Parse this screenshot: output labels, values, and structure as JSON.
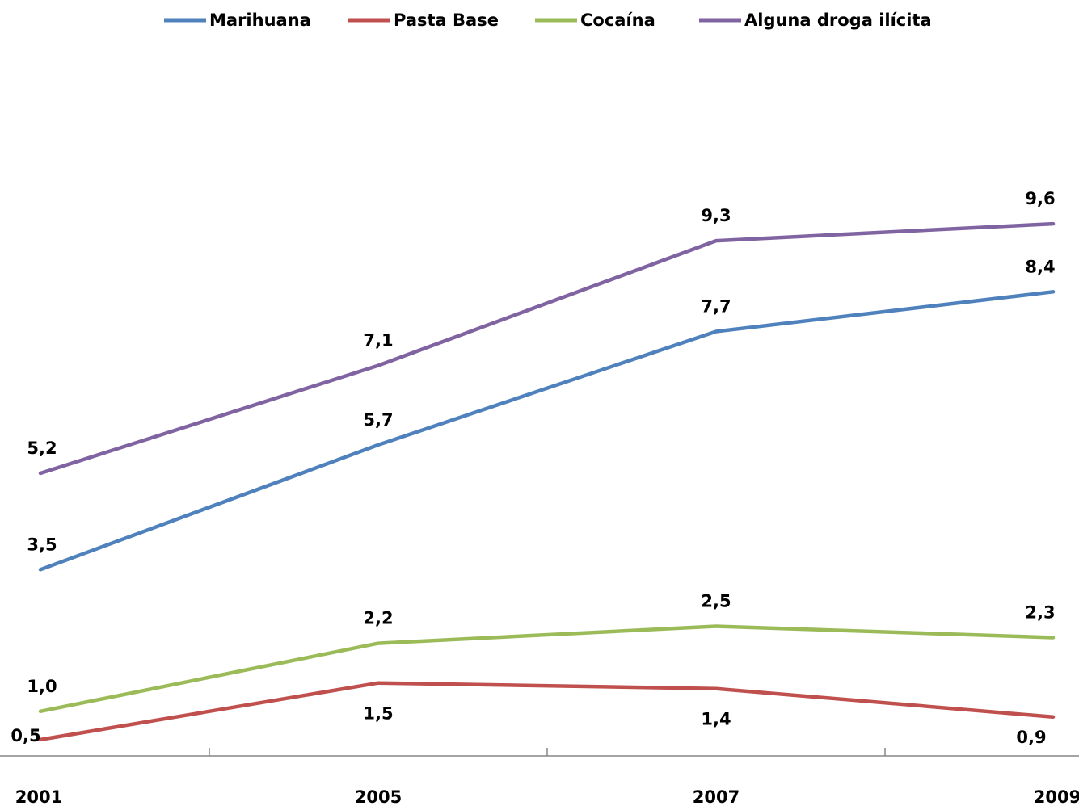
{
  "chart_data": {
    "type": "line",
    "categories": [
      "2001",
      "2005",
      "2007",
      "2009"
    ],
    "series": [
      {
        "name": "Marihuana",
        "color": "#4F81BD",
        "values": [
          3.5,
          5.7,
          7.7,
          8.4
        ],
        "labels": [
          "3,5",
          "5,7",
          "7,7",
          "8,4"
        ]
      },
      {
        "name": "Pasta Base",
        "color": "#C0504D",
        "values": [
          0.5,
          1.5,
          1.4,
          0.9
        ],
        "labels": [
          "0,5",
          "1,5",
          "1,4",
          "0,9"
        ]
      },
      {
        "name": "Cocaína",
        "color": "#9BBB59",
        "values": [
          1.0,
          2.2,
          2.5,
          2.3
        ],
        "labels": [
          "1,0",
          "2,2",
          "2,5",
          "2,3"
        ]
      },
      {
        "name": "Alguna droga ilícita",
        "color": "#8064A2",
        "values": [
          5.2,
          7.1,
          9.3,
          9.6
        ],
        "labels": [
          "5,2",
          "7,1",
          "9,3",
          "9,6"
        ]
      }
    ],
    "legend_position": "top",
    "grid": false,
    "ylim": [
      0,
      12
    ]
  }
}
